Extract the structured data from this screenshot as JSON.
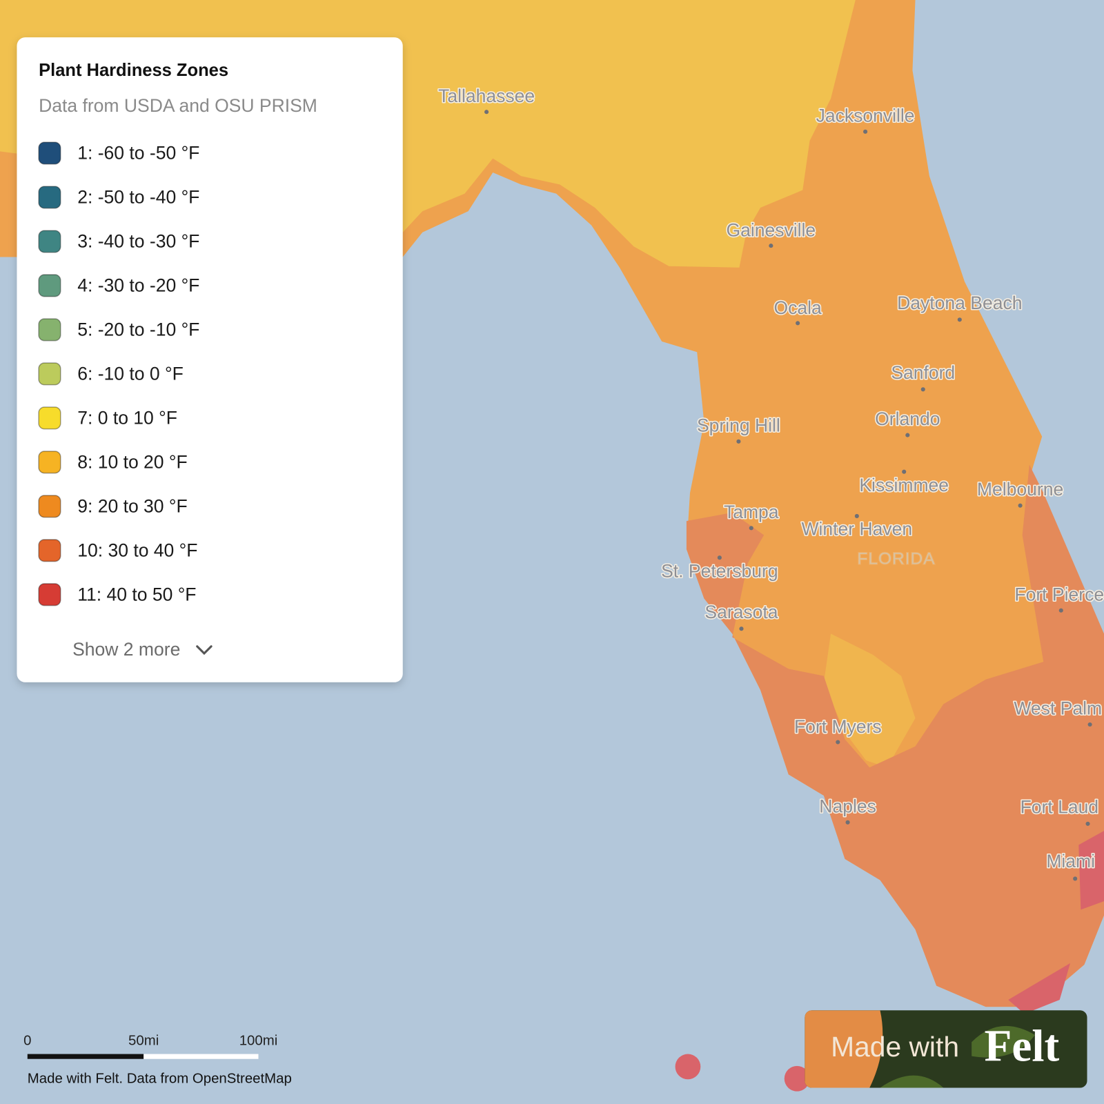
{
  "legend": {
    "title": "Plant Hardiness Zones",
    "subtitle": "Data from USDA and OSU PRISM",
    "items": [
      {
        "label": "1: -60 to -50 °F",
        "color": "#1f4e7a"
      },
      {
        "label": "2: -50 to -40 °F",
        "color": "#276a80"
      },
      {
        "label": "3: -40 to -30 °F",
        "color": "#3f8583"
      },
      {
        "label": "4: -30 to -20 °F",
        "color": "#5f9a7e"
      },
      {
        "label": "5: -20 to -10 °F",
        "color": "#86b26e"
      },
      {
        "label": "6: -10 to 0 °F",
        "color": "#bccb5c"
      },
      {
        "label": "7: 0 to 10 °F",
        "color": "#f7dc2b"
      },
      {
        "label": "8: 10 to 20 °F",
        "color": "#f6b323"
      },
      {
        "label": "9: 20 to 30 °F",
        "color": "#ee8a1f"
      },
      {
        "label": "10: 30 to 40 °F",
        "color": "#e4652a"
      },
      {
        "label": "11: 40 to 50 °F",
        "color": "#d63c34"
      }
    ],
    "show_more": "Show 2 more"
  },
  "map": {
    "cities": [
      "Tallahassee",
      "Jacksonville",
      "Gainesville",
      "Ocala",
      "Daytona Beach",
      "Sanford",
      "Orlando",
      "Spring Hill",
      "Kissimmee",
      "Melbourne",
      "Tampa",
      "Winter Haven",
      "St. Petersburg",
      "Sarasota",
      "Fort Pierce",
      "West Palm",
      "Fort Myers",
      "Naples",
      "Fort Laud",
      "Miami"
    ],
    "state_label": "FLORIDA"
  },
  "scale_bar": {
    "labels": [
      "0",
      "50mi",
      "100mi"
    ]
  },
  "attribution": "Made with Felt. Data from OpenStreetMap",
  "badge": {
    "prefix": "Made with",
    "brand": "Felt"
  }
}
